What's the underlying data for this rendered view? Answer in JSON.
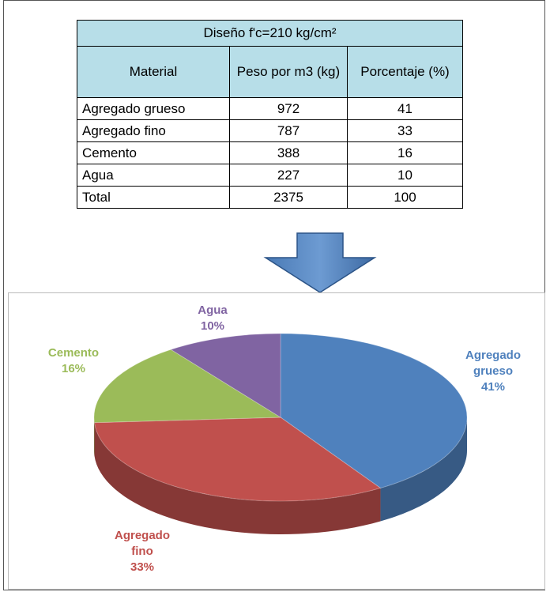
{
  "table": {
    "title": "Diseño f'c=210 kg/cm²",
    "headers": [
      "Material",
      "Peso por m3 (kg)",
      "Porcentaje (%)"
    ],
    "rows": [
      [
        "Agregado grueso",
        972,
        41
      ],
      [
        "Agregado fino",
        787,
        33
      ],
      [
        "Cemento",
        388,
        16
      ],
      [
        "Agua",
        227,
        10
      ],
      [
        "Total",
        2375,
        100
      ]
    ]
  },
  "chart_data": {
    "type": "pie3d",
    "categories": [
      "Agregado grueso",
      "Agregado fino",
      "Cemento",
      "Agua"
    ],
    "values": [
      41,
      33,
      16,
      10
    ],
    "value_labels": [
      "41%",
      "33%",
      "16%",
      "10%"
    ],
    "colors": [
      "#4f81bd",
      "#c0504d",
      "#9bbb59",
      "#8064a2"
    ]
  }
}
